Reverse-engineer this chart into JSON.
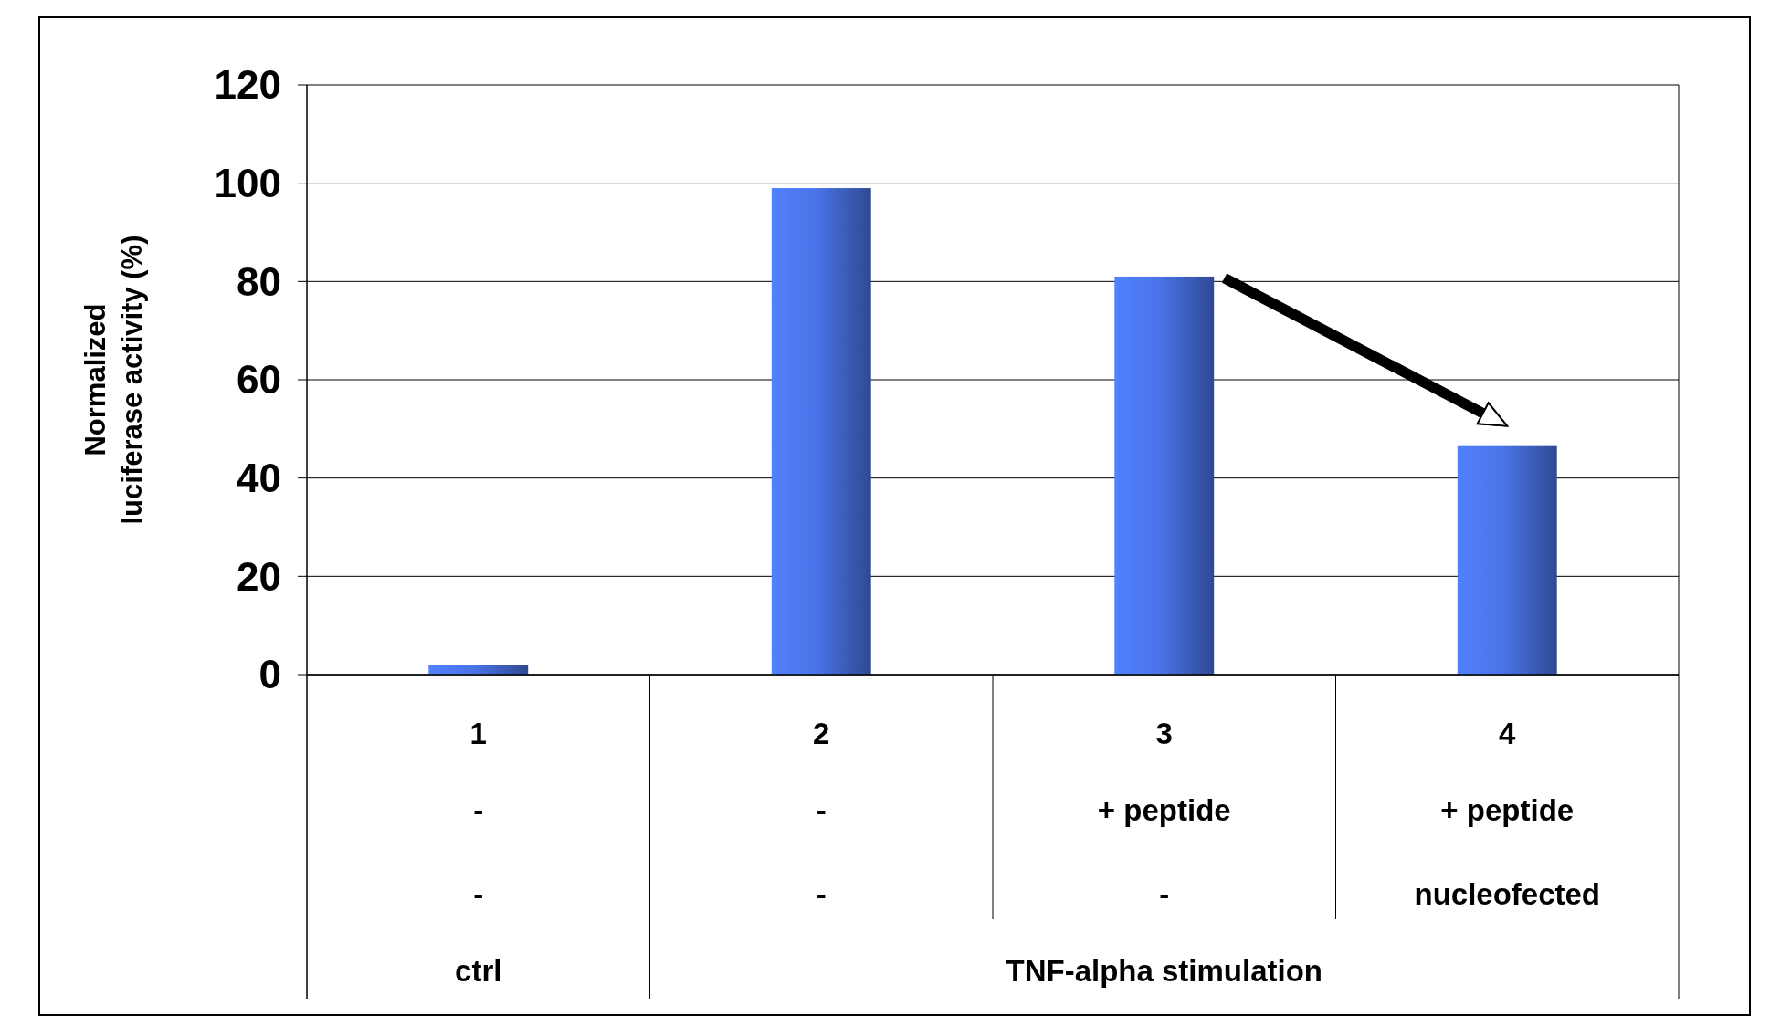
{
  "chart_data": {
    "type": "bar",
    "ylabel": "Normalized\nluciferase activity (%)",
    "categories": [
      "1",
      "2",
      "3",
      "4"
    ],
    "values": [
      2,
      99,
      81,
      46.5
    ],
    "color": "#4a74e8",
    "ylim": [
      0,
      120
    ],
    "yticks": [
      0,
      20,
      40,
      60,
      80,
      100,
      120
    ],
    "grid": "y",
    "annotations": [
      "-",
      "-",
      "+ peptide",
      "+ peptide",
      "-",
      "-",
      "-",
      "nucleofected",
      "ctrl",
      "TNF-alpha stimulation"
    ]
  }
}
